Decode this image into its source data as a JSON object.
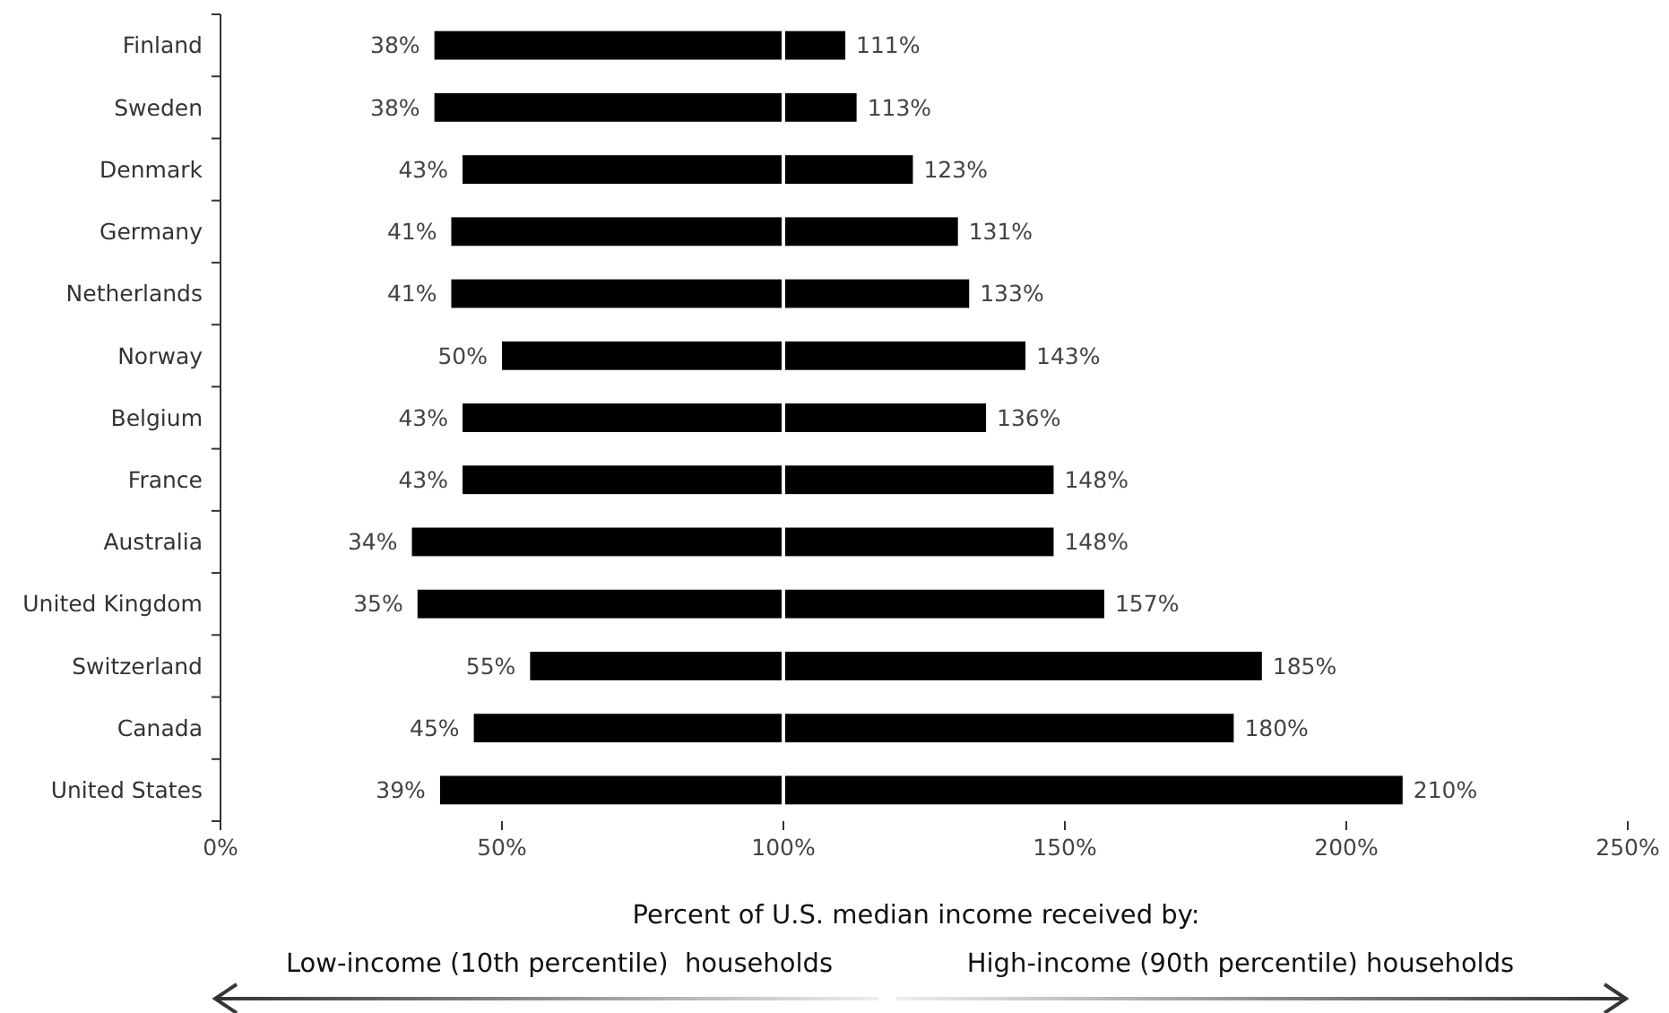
{
  "chart_data": {
    "type": "bar",
    "orientation": "horizontal",
    "categories": [
      "Finland",
      "Sweden",
      "Denmark",
      "Germany",
      "Netherlands",
      "Norway",
      "Belgium",
      "France",
      "Australia",
      "United Kingdom",
      "Switzerland",
      "Canada",
      "United States"
    ],
    "series": [
      {
        "color": "#000000",
        "base": [
          38,
          38,
          43,
          41,
          41,
          50,
          43,
          43,
          34,
          35,
          55,
          45,
          39
        ],
        "values": [
          73,
          75,
          80,
          90,
          92,
          93,
          93,
          105,
          114,
          122,
          130,
          135,
          171
        ]
      }
    ],
    "xlim": [
      0,
      250
    ],
    "xticks": [
      {
        "value": 0,
        "label": "0%"
      },
      {
        "value": 50,
        "label": "50%"
      },
      {
        "value": 100,
        "label": "100%"
      },
      {
        "value": 150,
        "label": "150%"
      },
      {
        "value": 200,
        "label": "200%"
      },
      {
        "value": 250,
        "label": "250%"
      }
    ],
    "grid": false,
    "ref_lines": [
      {
        "axis": "x",
        "value": 100,
        "color": "#ffffff"
      }
    ],
    "annotations": [
      "Percent of U.S. median income received by:",
      "Low-income (10th percentile)  households",
      "High-income (90th percentile) households",
      {
        "text": "38%",
        "x": 38,
        "y": "Finland"
      },
      {
        "text": "111%",
        "x": 111,
        "y": "Finland"
      },
      {
        "text": "38%",
        "x": 38,
        "y": "Sweden"
      },
      {
        "text": "113%",
        "x": 113,
        "y": "Sweden"
      },
      {
        "text": "43%",
        "x": 43,
        "y": "Denmark"
      },
      {
        "text": "123%",
        "x": 123,
        "y": "Denmark"
      },
      {
        "text": "41%",
        "x": 41,
        "y": "Germany"
      },
      {
        "text": "131%",
        "x": 131,
        "y": "Germany"
      },
      {
        "text": "41%",
        "x": 41,
        "y": "Netherlands"
      },
      {
        "text": "133%",
        "x": 133,
        "y": "Netherlands"
      },
      {
        "text": "50%",
        "x": 50,
        "y": "Norway"
      },
      {
        "text": "143%",
        "x": 143,
        "y": "Norway"
      },
      {
        "text": "43%",
        "x": 43,
        "y": "Belgium"
      },
      {
        "text": "136%",
        "x": 136,
        "y": "Belgium"
      },
      {
        "text": "43%",
        "x": 43,
        "y": "France"
      },
      {
        "text": "148%",
        "x": 148,
        "y": "France"
      },
      {
        "text": "34%",
        "x": 34,
        "y": "Australia"
      },
      {
        "text": "148%",
        "x": 148,
        "y": "Australia"
      },
      {
        "text": "35%",
        "x": 35,
        "y": "United Kingdom"
      },
      {
        "text": "157%",
        "x": 157,
        "y": "United Kingdom"
      },
      {
        "text": "55%",
        "x": 55,
        "y": "Switzerland"
      },
      {
        "text": "185%",
        "x": 185,
        "y": "Switzerland"
      },
      {
        "text": "45%",
        "x": 45,
        "y": "Canada"
      },
      {
        "text": "180%",
        "x": 180,
        "y": "Canada"
      },
      {
        "text": "39%",
        "x": 39,
        "y": "United States"
      },
      {
        "text": "210%",
        "x": 210,
        "y": "United States"
      }
    ]
  }
}
